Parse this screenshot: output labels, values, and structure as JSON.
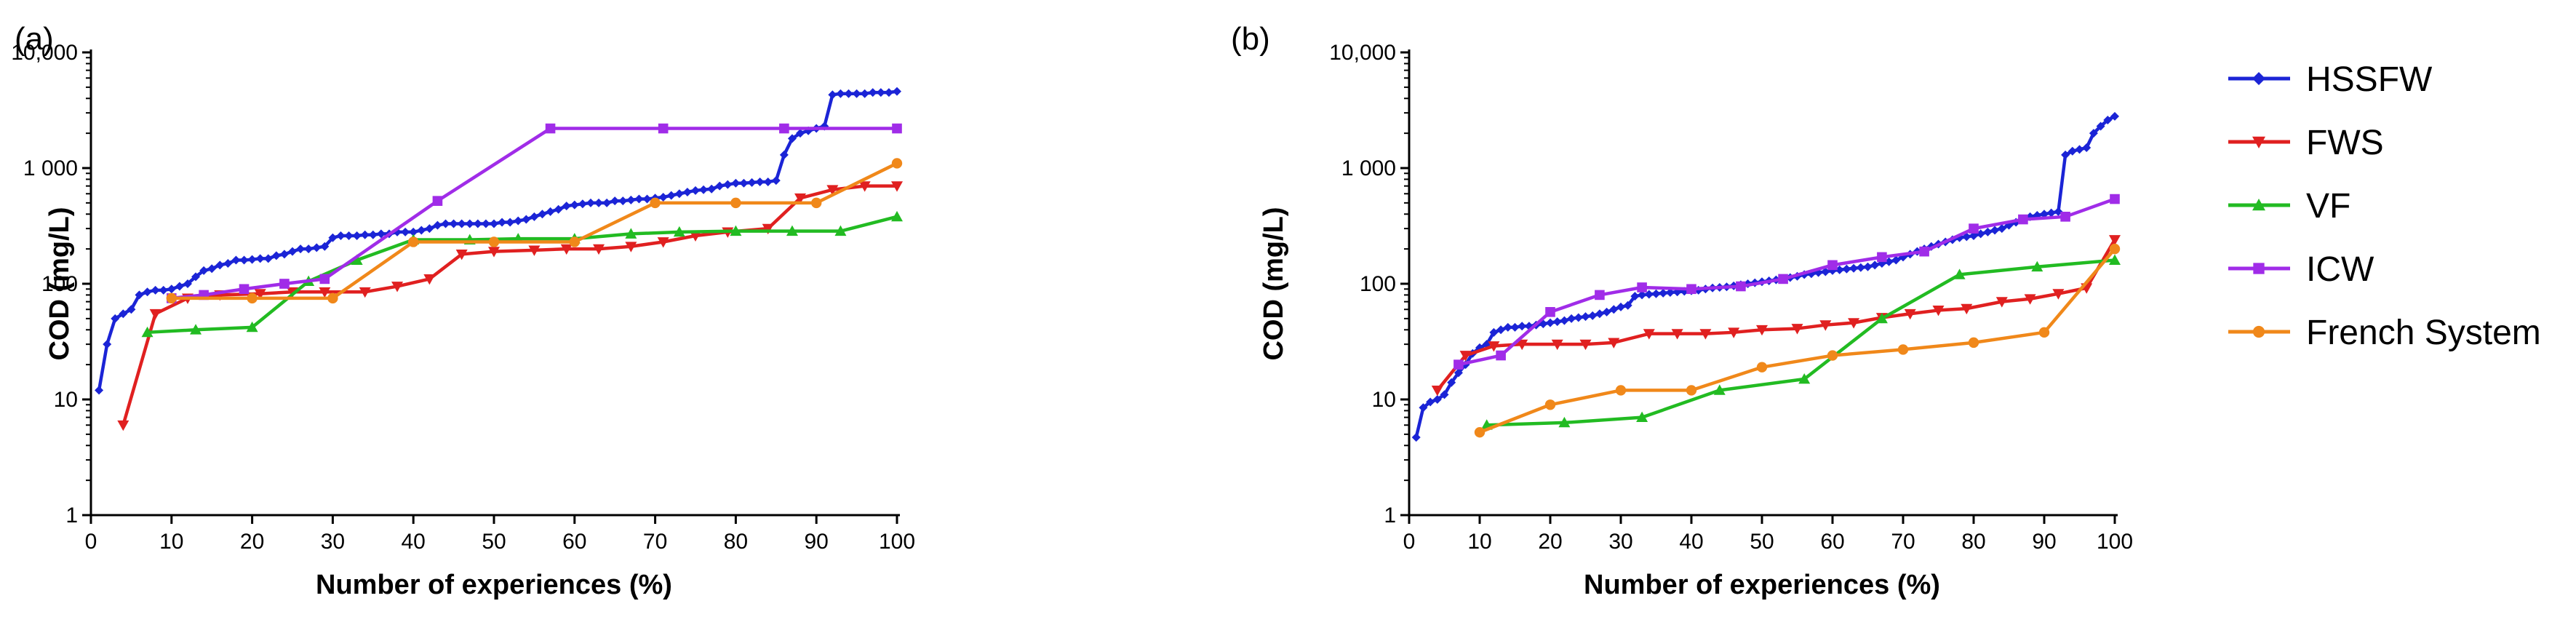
{
  "chart_data": [
    {
      "type": "line",
      "panel_label": "(a)",
      "xlabel": "Number of experiences (%)",
      "ylabel": "COD (mg/L)",
      "xlim": [
        0,
        100
      ],
      "ylim": [
        1,
        10000
      ],
      "yscale": "log",
      "x_ticks": [
        "0",
        "10",
        "20",
        "30",
        "40",
        "50",
        "60",
        "70",
        "80",
        "90",
        "100"
      ],
      "y_ticks": [
        "1",
        "10",
        "100",
        "1 000",
        "10,000"
      ],
      "series": [
        {
          "name": "HSSFW",
          "color": "#1b24d6",
          "marker": "diamond",
          "x": [
            1,
            2,
            3,
            4,
            5,
            6,
            7,
            8,
            9,
            10,
            11,
            12,
            13,
            14,
            15,
            16,
            17,
            18,
            19,
            20,
            21,
            22,
            23,
            24,
            25,
            26,
            27,
            28,
            29,
            30,
            31,
            32,
            33,
            34,
            35,
            36,
            37,
            38,
            39,
            40,
            41,
            42,
            43,
            44,
            45,
            46,
            47,
            48,
            49,
            50,
            51,
            52,
            53,
            54,
            55,
            56,
            57,
            58,
            59,
            60,
            61,
            62,
            63,
            64,
            65,
            66,
            67,
            68,
            69,
            70,
            71,
            72,
            73,
            74,
            75,
            76,
            77,
            78,
            79,
            80,
            81,
            82,
            83,
            84,
            85,
            86,
            87,
            88,
            89,
            90,
            91,
            92,
            93,
            94,
            95,
            96,
            97,
            98,
            99,
            100
          ],
          "y": [
            12,
            30,
            50,
            55,
            60,
            80,
            85,
            88,
            88,
            90,
            95,
            100,
            115,
            130,
            135,
            145,
            150,
            160,
            160,
            162,
            165,
            165,
            175,
            180,
            190,
            200,
            200,
            205,
            210,
            250,
            260,
            260,
            260,
            265,
            265,
            270,
            270,
            280,
            280,
            280,
            290,
            300,
            320,
            330,
            330,
            330,
            330,
            330,
            330,
            330,
            340,
            340,
            350,
            360,
            380,
            400,
            420,
            440,
            470,
            480,
            490,
            500,
            500,
            500,
            520,
            520,
            530,
            540,
            540,
            550,
            560,
            580,
            600,
            620,
            640,
            650,
            660,
            700,
            720,
            740,
            740,
            750,
            760,
            760,
            780,
            1300,
            1800,
            2000,
            2100,
            2200,
            2300,
            4300,
            4400,
            4400,
            4400,
            4400,
            4500,
            4500,
            4500,
            4600
          ]
        },
        {
          "name": "FWS",
          "color": "#e02020",
          "marker": "triangle-down",
          "x": [
            4,
            8,
            12,
            16,
            21,
            25,
            29,
            34,
            38,
            42,
            46,
            50,
            55,
            59,
            63,
            67,
            71,
            75,
            79,
            84,
            88,
            92,
            96,
            100
          ],
          "y": [
            6,
            55,
            75,
            80,
            82,
            85,
            85,
            85,
            95,
            110,
            180,
            190,
            195,
            200,
            200,
            210,
            230,
            260,
            280,
            300,
            550,
            650,
            700,
            700
          ]
        },
        {
          "name": "VF",
          "color": "#22bb22",
          "marker": "triangle-up",
          "x": [
            7,
            13,
            20,
            27,
            33,
            40,
            47,
            53,
            60,
            67,
            73,
            80,
            87,
            93,
            100
          ],
          "y": [
            38,
            40,
            42,
            105,
            160,
            240,
            240,
            245,
            245,
            270,
            280,
            285,
            285,
            285,
            380
          ]
        },
        {
          "name": "ICW",
          "color": "#a02ce8",
          "marker": "square",
          "x": [
            10,
            14,
            19,
            24,
            29,
            43,
            57,
            71,
            86,
            100
          ],
          "y": [
            75,
            80,
            90,
            100,
            110,
            520,
            2200,
            2200,
            2200,
            2200
          ]
        },
        {
          "name": "French System",
          "color": "#f0881a",
          "marker": "circle",
          "x": [
            10,
            20,
            30,
            40,
            50,
            60,
            70,
            80,
            90,
            100
          ],
          "y": [
            75,
            75,
            75,
            230,
            230,
            230,
            500,
            500,
            500,
            1100
          ]
        }
      ]
    },
    {
      "type": "line",
      "panel_label": "(b)",
      "xlabel": "Number of experiences (%)",
      "ylabel": "COD (mg/L)",
      "xlim": [
        0,
        100
      ],
      "ylim": [
        1,
        10000
      ],
      "yscale": "log",
      "x_ticks": [
        "0",
        "10",
        "20",
        "30",
        "40",
        "50",
        "60",
        "70",
        "80",
        "90",
        "100"
      ],
      "y_ticks": [
        "1",
        "10",
        "100",
        "1 000",
        "10,000"
      ],
      "series": [
        {
          "name": "HSSFW",
          "color": "#1b24d6",
          "marker": "diamond",
          "x": [
            1,
            2,
            3,
            4,
            5,
            6,
            7,
            8,
            9,
            10,
            11,
            12,
            13,
            14,
            15,
            16,
            17,
            18,
            19,
            20,
            21,
            22,
            23,
            24,
            25,
            26,
            27,
            28,
            29,
            30,
            31,
            32,
            33,
            34,
            35,
            36,
            37,
            38,
            39,
            40,
            41,
            42,
            43,
            44,
            45,
            46,
            47,
            48,
            49,
            50,
            51,
            52,
            53,
            54,
            55,
            56,
            57,
            58,
            59,
            60,
            61,
            62,
            63,
            64,
            65,
            66,
            67,
            68,
            69,
            70,
            71,
            72,
            73,
            74,
            75,
            76,
            77,
            78,
            79,
            80,
            81,
            82,
            83,
            84,
            85,
            86,
            87,
            88,
            89,
            90,
            91,
            92,
            93,
            94,
            95,
            96,
            97,
            98,
            99,
            100
          ],
          "y": [
            4.7,
            8.5,
            9.5,
            10,
            11,
            14,
            17,
            20,
            25,
            28,
            30,
            38,
            40,
            42,
            42,
            43,
            43,
            44,
            45,
            46,
            47,
            48,
            50,
            51,
            52,
            53,
            55,
            57,
            60,
            63,
            65,
            78,
            80,
            81,
            82,
            83,
            84,
            85,
            86,
            87,
            88,
            90,
            92,
            93,
            94,
            96,
            98,
            100,
            102,
            104,
            106,
            108,
            110,
            113,
            116,
            120,
            122,
            125,
            127,
            130,
            132,
            134,
            136,
            138,
            140,
            145,
            150,
            155,
            160,
            170,
            180,
            190,
            200,
            210,
            220,
            230,
            240,
            250,
            255,
            260,
            270,
            280,
            290,
            300,
            320,
            340,
            360,
            380,
            390,
            400,
            410,
            420,
            1300,
            1400,
            1450,
            1500,
            2000,
            2300,
            2600,
            2800
          ]
        },
        {
          "name": "FWS",
          "color": "#e02020",
          "marker": "triangle-down",
          "x": [
            4,
            8,
            12,
            16,
            21,
            25,
            29,
            34,
            38,
            42,
            46,
            50,
            55,
            59,
            63,
            67,
            71,
            75,
            79,
            84,
            88,
            92,
            96,
            100
          ],
          "y": [
            12,
            24,
            29,
            30,
            30,
            30,
            31,
            37,
            37,
            37,
            38,
            40,
            41,
            44,
            46,
            51,
            55,
            59,
            61,
            70,
            74,
            82,
            92,
            240
          ]
        },
        {
          "name": "VF",
          "color": "#22bb22",
          "marker": "triangle-up",
          "x": [
            11,
            22,
            33,
            44,
            56,
            67,
            78,
            89,
            100
          ],
          "y": [
            6,
            6.3,
            7,
            12,
            15,
            50,
            120,
            140,
            160
          ]
        },
        {
          "name": "ICW",
          "color": "#a02ce8",
          "marker": "square",
          "x": [
            7,
            13,
            20,
            27,
            33,
            40,
            47,
            53,
            60,
            67,
            73,
            80,
            87,
            93,
            100
          ],
          "y": [
            20,
            24,
            57,
            80,
            93,
            90,
            95,
            110,
            145,
            170,
            190,
            300,
            360,
            380,
            540
          ]
        },
        {
          "name": "French System",
          "color": "#f0881a",
          "marker": "circle",
          "x": [
            10,
            20,
            30,
            40,
            50,
            60,
            70,
            80,
            90,
            100
          ],
          "y": [
            5.2,
            9,
            12,
            12,
            19,
            24,
            27,
            31,
            38,
            200
          ]
        }
      ]
    }
  ],
  "legend": {
    "items": [
      {
        "name": "HSSFW",
        "color": "#1b24d6",
        "marker": "diamond"
      },
      {
        "name": "FWS",
        "color": "#e02020",
        "marker": "triangle-down"
      },
      {
        "name": "VF",
        "color": "#22bb22",
        "marker": "triangle-up"
      },
      {
        "name": "ICW",
        "color": "#a02ce8",
        "marker": "square"
      },
      {
        "name": "French System",
        "color": "#f0881a",
        "marker": "circle"
      }
    ]
  }
}
